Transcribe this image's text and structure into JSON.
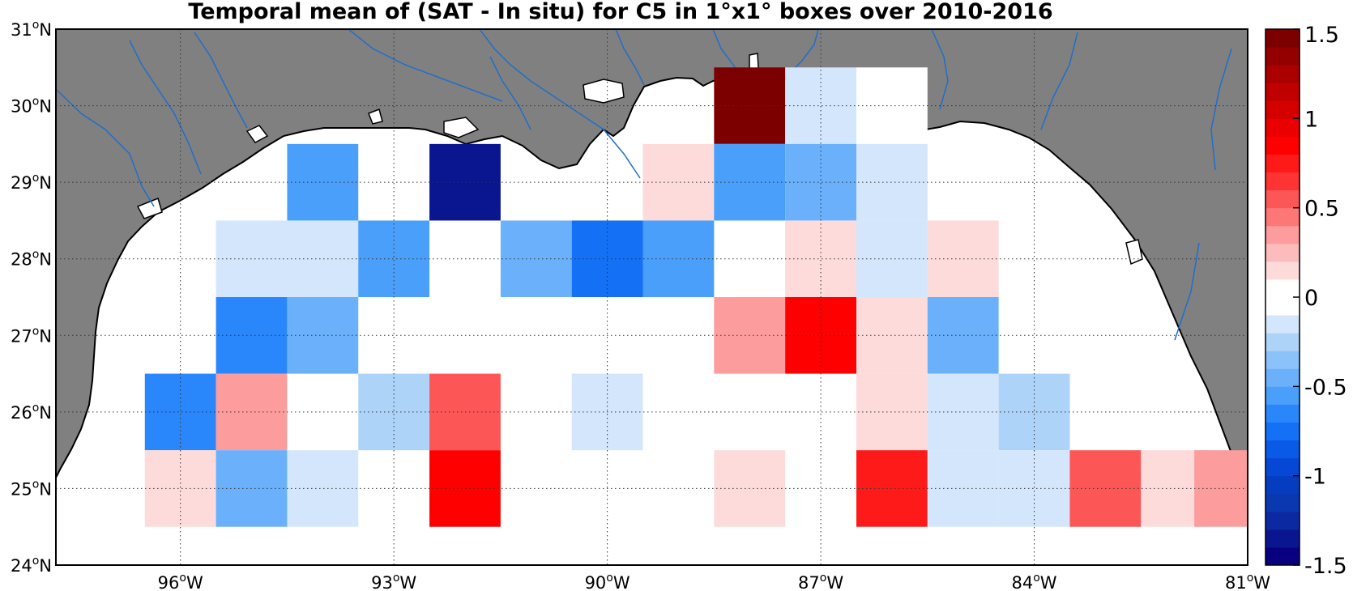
{
  "title": "Temporal mean of (SAT - In situ) for C5 in 1°x1° boxes over 2010-2016",
  "colors": {
    "land": "#808080",
    "water": "#ffffff",
    "river": "#1f6fc9",
    "coast": "#000000"
  },
  "map": {
    "lon_range": [
      -97.75,
      -81
    ],
    "lat_range": [
      24,
      31
    ],
    "lon_ticks": [
      {
        "deg": -96,
        "label": "96",
        "suffix": "W"
      },
      {
        "deg": -93,
        "label": "93",
        "suffix": "W"
      },
      {
        "deg": -90,
        "label": "90",
        "suffix": "W"
      },
      {
        "deg": -87,
        "label": "87",
        "suffix": "W"
      },
      {
        "deg": -84,
        "label": "84",
        "suffix": "W"
      },
      {
        "deg": -81,
        "label": "81",
        "suffix": "W"
      }
    ],
    "lat_ticks": [
      {
        "deg": 24,
        "label": "24",
        "suffix": "N"
      },
      {
        "deg": 25,
        "label": "25",
        "suffix": "N"
      },
      {
        "deg": 26,
        "label": "26",
        "suffix": "N"
      },
      {
        "deg": 27,
        "label": "27",
        "suffix": "N"
      },
      {
        "deg": 28,
        "label": "28",
        "suffix": "N"
      },
      {
        "deg": 29,
        "label": "29",
        "suffix": "N"
      },
      {
        "deg": 30,
        "label": "30",
        "suffix": "N"
      },
      {
        "deg": 31,
        "label": "31",
        "suffix": "N"
      }
    ]
  },
  "cells": [
    {
      "lon": -88,
      "lat": 30,
      "v": 1.4
    },
    {
      "lon": -87,
      "lat": 30,
      "v": -0.15
    },
    {
      "lon": -86,
      "lat": 30,
      "v": 0.0
    },
    {
      "lon": -94,
      "lat": 29,
      "v": -0.55
    },
    {
      "lon": -92,
      "lat": 29,
      "v": -1.35
    },
    {
      "lon": -89,
      "lat": 29,
      "v": 0.1
    },
    {
      "lon": -88,
      "lat": 29,
      "v": -0.55
    },
    {
      "lon": -87,
      "lat": 29,
      "v": -0.45
    },
    {
      "lon": -86,
      "lat": 29,
      "v": -0.15
    },
    {
      "lon": -95,
      "lat": 28,
      "v": -0.15
    },
    {
      "lon": -94,
      "lat": 28,
      "v": -0.15
    },
    {
      "lon": -93,
      "lat": 28,
      "v": -0.55
    },
    {
      "lon": -91,
      "lat": 28,
      "v": -0.45
    },
    {
      "lon": -90,
      "lat": 28,
      "v": -0.75
    },
    {
      "lon": -89,
      "lat": 28,
      "v": -0.55
    },
    {
      "lon": -87,
      "lat": 28,
      "v": 0.1
    },
    {
      "lon": -86,
      "lat": 28,
      "v": -0.15
    },
    {
      "lon": -85,
      "lat": 28,
      "v": 0.1
    },
    {
      "lon": -95,
      "lat": 27,
      "v": -0.65
    },
    {
      "lon": -94,
      "lat": 27,
      "v": -0.45
    },
    {
      "lon": -88,
      "lat": 27,
      "v": 0.3
    },
    {
      "lon": -87,
      "lat": 27,
      "v": 0.85
    },
    {
      "lon": -86,
      "lat": 27,
      "v": 0.1
    },
    {
      "lon": -85,
      "lat": 27,
      "v": -0.45
    },
    {
      "lon": -96,
      "lat": 26,
      "v": -0.65
    },
    {
      "lon": -95,
      "lat": 26,
      "v": 0.3
    },
    {
      "lon": -93,
      "lat": 26,
      "v": -0.25
    },
    {
      "lon": -92,
      "lat": 26,
      "v": 0.5
    },
    {
      "lon": -90,
      "lat": 26,
      "v": -0.15
    },
    {
      "lon": -86,
      "lat": 26,
      "v": 0.1
    },
    {
      "lon": -85,
      "lat": 26,
      "v": -0.15
    },
    {
      "lon": -84,
      "lat": 26,
      "v": -0.25
    },
    {
      "lon": -96,
      "lat": 25,
      "v": 0.1
    },
    {
      "lon": -95,
      "lat": 25,
      "v": -0.45
    },
    {
      "lon": -94,
      "lat": 25,
      "v": -0.15
    },
    {
      "lon": -92,
      "lat": 25,
      "v": 0.85
    },
    {
      "lon": -88,
      "lat": 25,
      "v": 0.1
    },
    {
      "lon": -86,
      "lat": 25,
      "v": 0.7
    },
    {
      "lon": -85,
      "lat": 25,
      "v": -0.15
    },
    {
      "lon": -84,
      "lat": 25,
      "v": -0.15
    },
    {
      "lon": -83,
      "lat": 25,
      "v": 0.5
    },
    {
      "lon": -82,
      "lat": 25,
      "v": 0.1
    },
    {
      "lon": -81.25,
      "lat": 25,
      "v": 0.35
    }
  ],
  "colorbar": {
    "vmin": -1.5,
    "vmax": 1.5,
    "colors": [
      "#08007e",
      "#0a1690",
      "#0b2aa2",
      "#0a38b0",
      "#063cc0",
      "#0647d6",
      "#0a5ae8",
      "#1470f5",
      "#2a86fb",
      "#4a9ffb",
      "#6ab0fa",
      "#8cc2fa",
      "#aed3f8",
      "#d4e6fb",
      "#ffffff",
      "#ffffff",
      "#fddbdb",
      "#fdbcbc",
      "#fd9c9c",
      "#fd7777",
      "#fd5656",
      "#fe3333",
      "#ff1a1a",
      "#ff0000",
      "#ea0000",
      "#d40000",
      "#c00000",
      "#aa0000",
      "#940000",
      "#7d0000"
    ],
    "ticks": [
      {
        "value": 1.5,
        "label": "1.5"
      },
      {
        "value": 1,
        "label": "1"
      },
      {
        "value": 0.5,
        "label": "0.5"
      },
      {
        "value": 0,
        "label": "0"
      },
      {
        "value": -0.5,
        "label": "-0.5"
      },
      {
        "value": -1,
        "label": "-1"
      },
      {
        "value": -1.5,
        "label": "-1.5"
      }
    ]
  }
}
